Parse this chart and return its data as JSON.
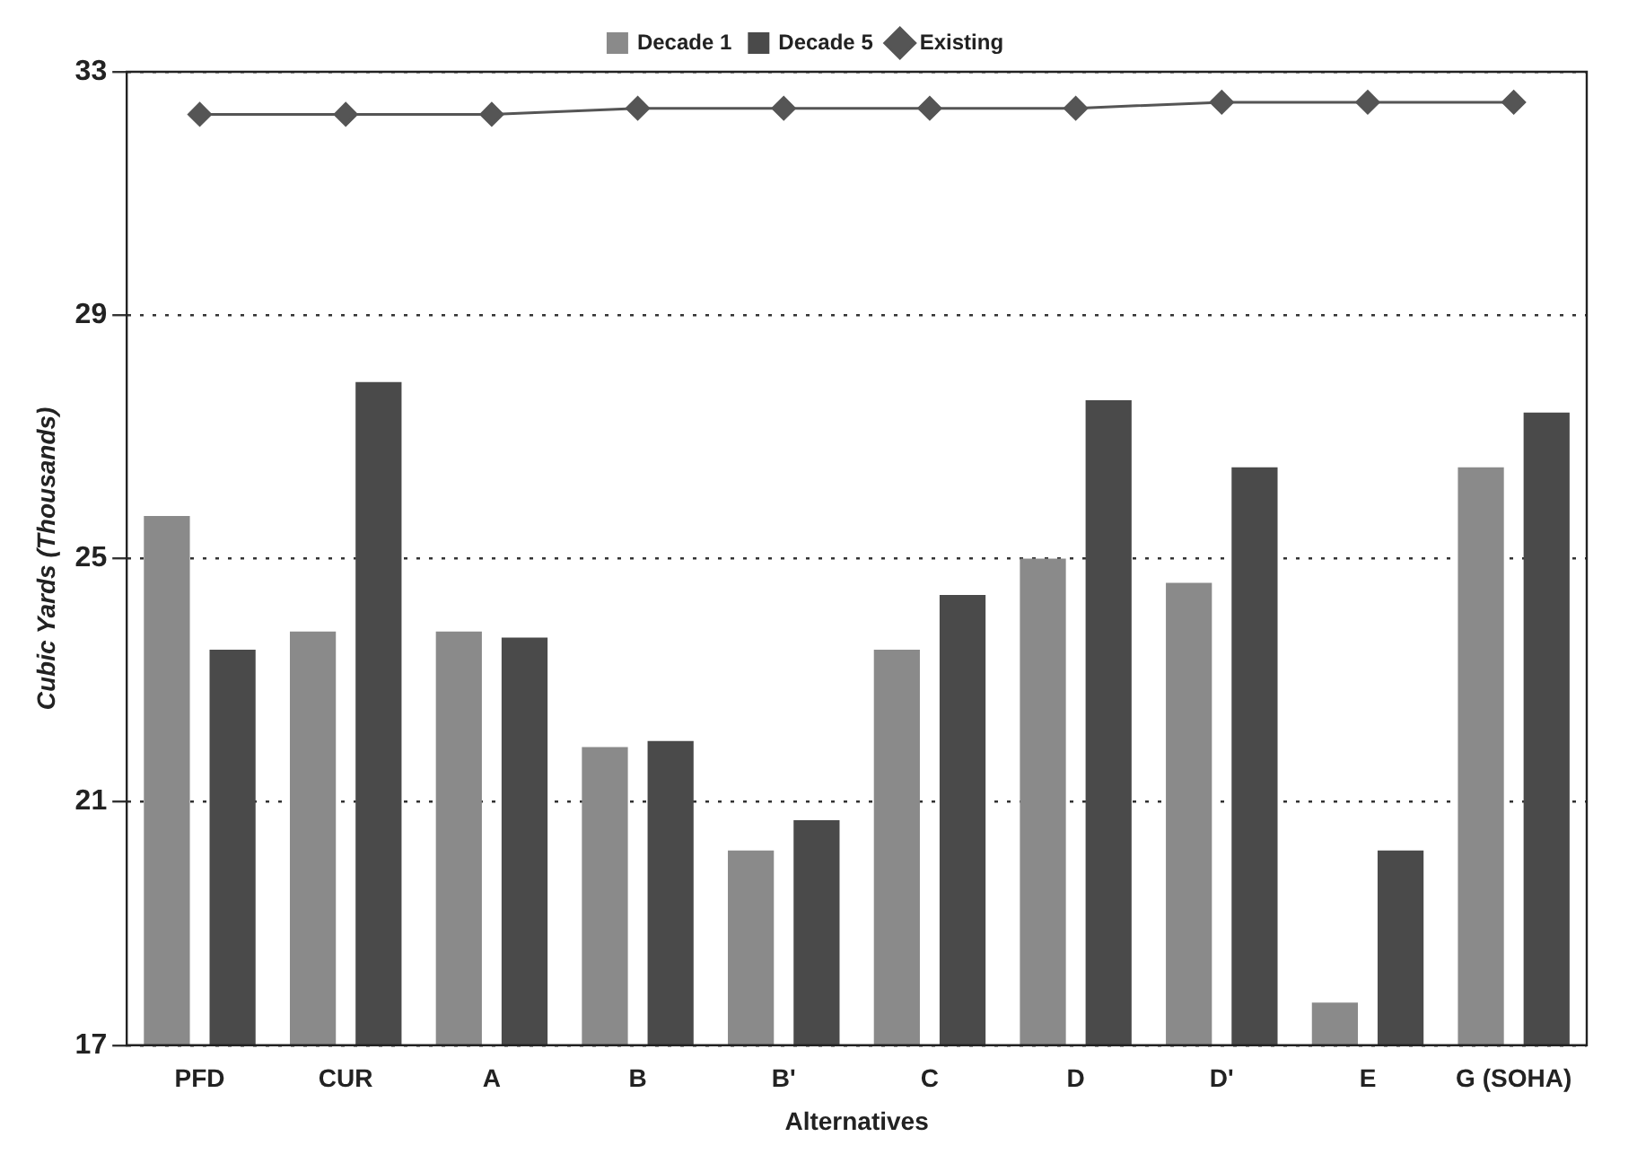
{
  "chart_data": {
    "type": "bar",
    "xlabel": "Alternatives",
    "ylabel": "Cubic Yards (Thousands)",
    "categories": [
      "PFD",
      "CUR",
      "A",
      "B",
      "B'",
      "C",
      "D",
      "D'",
      "E",
      "G (SOHA)"
    ],
    "series": [
      {
        "name": "Decade 1",
        "color": "#8a8a8a",
        "values": [
          25.7,
          23.8,
          23.8,
          21.9,
          20.2,
          23.5,
          25.0,
          24.6,
          17.7,
          26.5
        ]
      },
      {
        "name": "Decade 5",
        "color": "#4a4a4a",
        "values": [
          23.5,
          27.9,
          23.7,
          22.0,
          20.7,
          24.4,
          27.6,
          26.5,
          20.2,
          27.4
        ]
      },
      {
        "name": "Existing",
        "type": "line",
        "color": "#555555",
        "marker": "diamond",
        "values": [
          32.3,
          32.3,
          32.3,
          32.4,
          32.4,
          32.4,
          32.4,
          32.5,
          32.5,
          32.5
        ]
      }
    ],
    "ylim": [
      17,
      33
    ],
    "yticks": [
      17,
      21,
      25,
      29,
      33
    ],
    "grid": "y",
    "legend": "top"
  }
}
